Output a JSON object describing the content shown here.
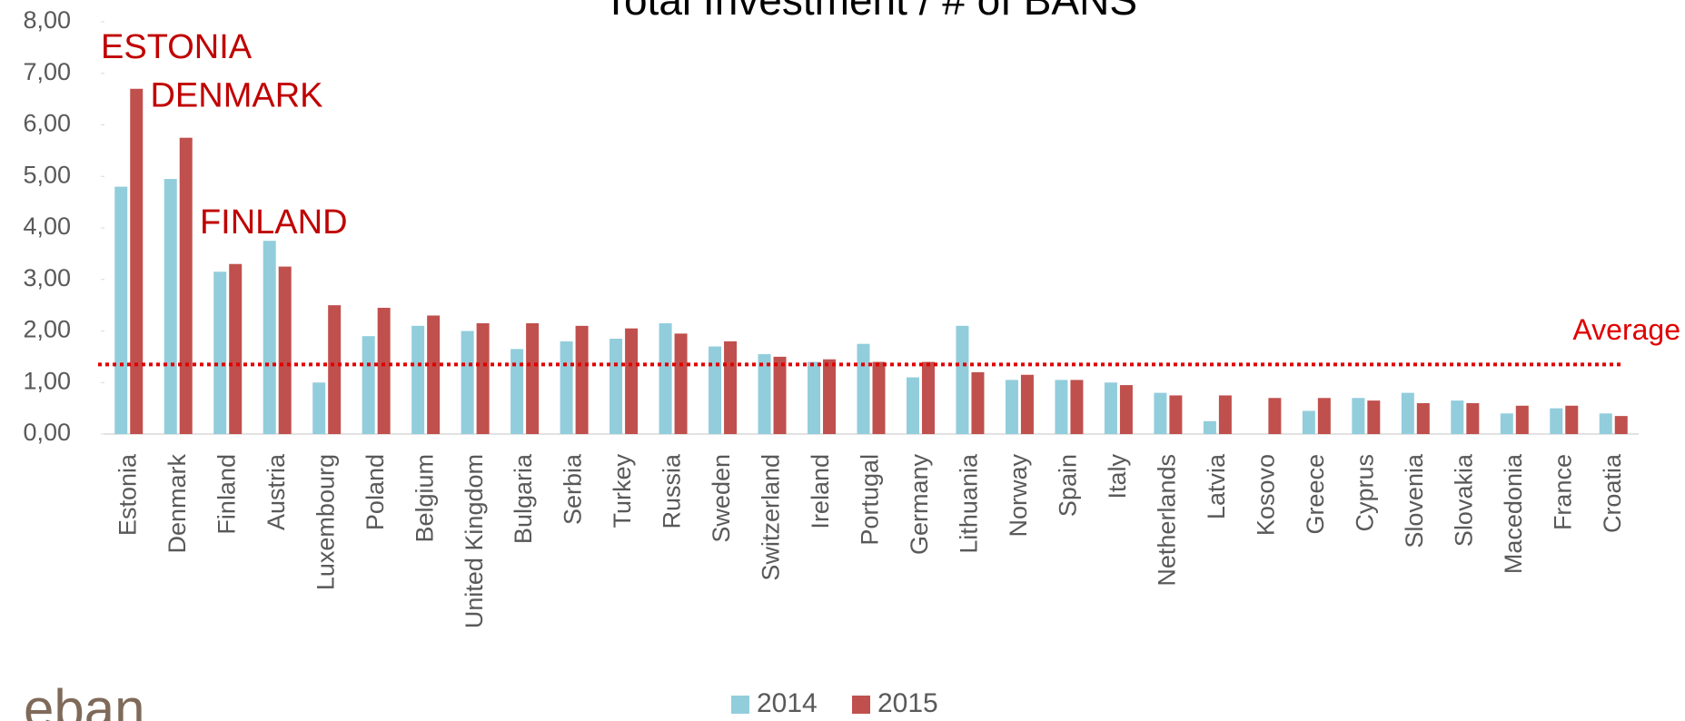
{
  "chart_data": {
    "type": "bar",
    "title": "Total Investment / # of BANS",
    "categories": [
      "Estonia",
      "Denmark",
      "Finland",
      "Austria",
      "Luxembourg",
      "Poland",
      "Belgium",
      "United Kingdom",
      "Bulgaria",
      "Serbia",
      "Turkey",
      "Russia",
      "Sweden",
      "Switzerland",
      "Ireland",
      "Portugal",
      "Germany",
      "Lithuania",
      "Norway",
      "Spain",
      "Italy",
      "Netherlands",
      "Latvia",
      "Kosovo",
      "Greece",
      "Cyprus",
      "Slovenia",
      "Slovakia",
      "Macedonia",
      "France",
      "Croatia"
    ],
    "series": [
      {
        "name": "2014",
        "color": "#92cddc",
        "values": [
          4.8,
          4.95,
          3.15,
          3.75,
          1.0,
          1.9,
          2.1,
          2.0,
          1.65,
          1.8,
          1.85,
          2.15,
          1.7,
          1.55,
          1.4,
          1.75,
          1.1,
          2.1,
          1.05,
          1.05,
          1.0,
          0.8,
          0.25,
          null,
          0.45,
          0.7,
          0.8,
          0.65,
          0.4,
          0.5,
          0.4
        ]
      },
      {
        "name": "2015",
        "color": "#c0504d",
        "values": [
          6.7,
          5.75,
          3.3,
          3.25,
          2.5,
          2.45,
          2.3,
          2.15,
          2.15,
          2.1,
          2.05,
          1.95,
          1.8,
          1.5,
          1.45,
          1.4,
          1.4,
          1.2,
          1.15,
          1.05,
          0.95,
          0.75,
          0.75,
          0.7,
          0.7,
          0.65,
          0.6,
          0.6,
          0.55,
          0.55,
          0.35
        ]
      }
    ],
    "ylim": [
      0,
      8
    ],
    "yticks": [
      {
        "value": 0,
        "label": "0,00"
      },
      {
        "value": 1,
        "label": "1,00"
      },
      {
        "value": 2,
        "label": "2,00"
      },
      {
        "value": 3,
        "label": "3,00"
      },
      {
        "value": 4,
        "label": "4,00"
      },
      {
        "value": 5,
        "label": "5,00"
      },
      {
        "value": 6,
        "label": "6,00"
      },
      {
        "value": 7,
        "label": "7,00"
      },
      {
        "value": 8,
        "label": "8,00"
      }
    ],
    "average": {
      "value": 1.35,
      "label": "Average",
      "color": "#e00000"
    },
    "annotations": [
      "ESTONIA",
      "DENMARK",
      "FINLAND"
    ],
    "annotation_color": "#c00000",
    "logo": "eban"
  }
}
